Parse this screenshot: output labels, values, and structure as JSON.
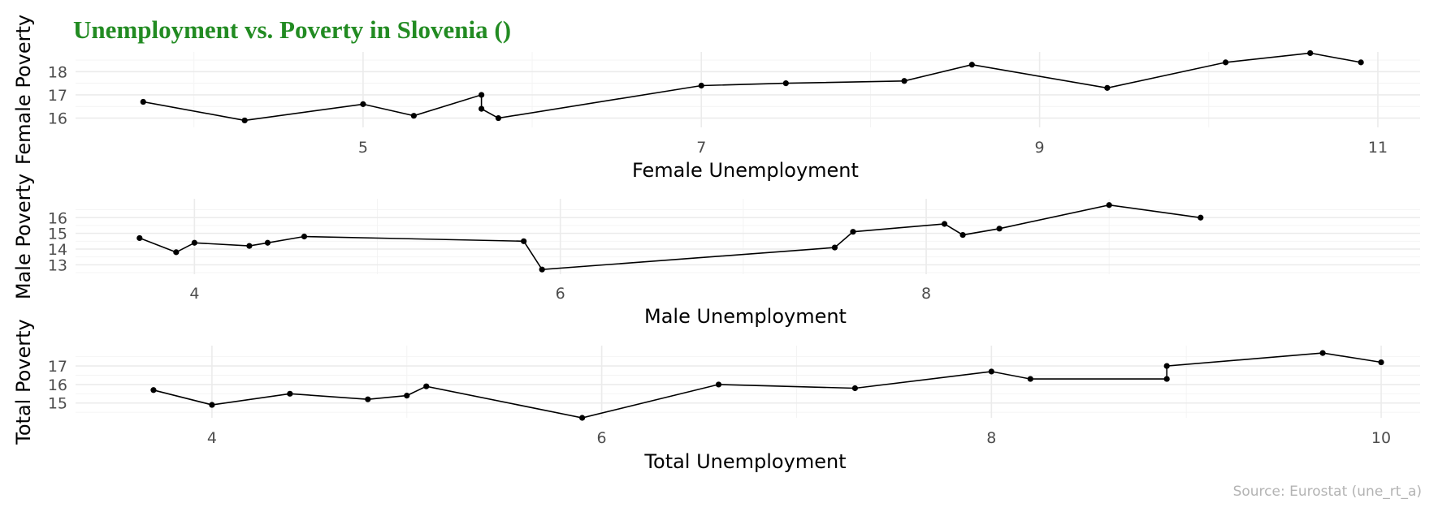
{
  "title": "Unemployment vs. Poverty in Slovenia ()",
  "title_color": "#228B22",
  "caption": "Source: Eurostat (une_rt_a)",
  "chart_data": [
    {
      "type": "line",
      "xlabel": "Female Unemployment",
      "ylabel": "Female Poverty",
      "xlim": [
        3.3,
        11.25
      ],
      "ylim": [
        15.6,
        18.85
      ],
      "xticks": [
        5,
        7,
        9,
        11
      ],
      "yticks": [
        16,
        17,
        18
      ],
      "grid": true,
      "points": [
        [
          3.7,
          16.7
        ],
        [
          4.3,
          15.9
        ],
        [
          5.0,
          16.6
        ],
        [
          5.3,
          16.1
        ],
        [
          5.7,
          17.0
        ],
        [
          5.7,
          16.4
        ],
        [
          5.8,
          16.0
        ],
        [
          7.0,
          17.4
        ],
        [
          7.5,
          17.5
        ],
        [
          8.2,
          17.6
        ],
        [
          8.6,
          18.3
        ],
        [
          9.4,
          17.3
        ],
        [
          10.1,
          18.4
        ],
        [
          10.6,
          18.8
        ],
        [
          10.9,
          18.4
        ]
      ]
    },
    {
      "type": "line",
      "xlabel": "Male Unemployment",
      "ylabel": "Male Poverty",
      "xlim": [
        3.35,
        10.7
      ],
      "ylim": [
        12.4,
        17.2
      ],
      "xticks": [
        4,
        6,
        8
      ],
      "yticks": [
        13,
        14,
        15,
        16
      ],
      "grid": true,
      "points": [
        [
          3.7,
          14.7
        ],
        [
          3.9,
          13.8
        ],
        [
          4.0,
          14.4
        ],
        [
          4.3,
          14.2
        ],
        [
          4.4,
          14.4
        ],
        [
          4.6,
          14.8
        ],
        [
          5.8,
          14.5
        ],
        [
          5.9,
          12.7
        ],
        [
          7.5,
          14.1
        ],
        [
          7.6,
          15.1
        ],
        [
          8.1,
          15.6
        ],
        [
          8.2,
          14.9
        ],
        [
          8.4,
          15.3
        ],
        [
          9.0,
          16.8
        ],
        [
          9.5,
          16.0
        ]
      ]
    },
    {
      "type": "line",
      "xlabel": "Total Unemployment",
      "ylabel": "Total Poverty",
      "xlim": [
        3.3,
        10.2
      ],
      "ylim": [
        14.2,
        18.1
      ],
      "xticks": [
        4,
        6,
        8,
        10
      ],
      "yticks": [
        15,
        16,
        17
      ],
      "grid": true,
      "points": [
        [
          3.7,
          15.7
        ],
        [
          4.0,
          14.9
        ],
        [
          4.4,
          15.5
        ],
        [
          4.8,
          15.2
        ],
        [
          5.0,
          15.4
        ],
        [
          5.1,
          15.9
        ],
        [
          5.9,
          14.2
        ],
        [
          6.6,
          16.0
        ],
        [
          7.3,
          15.8
        ],
        [
          8.0,
          16.7
        ],
        [
          8.2,
          16.3
        ],
        [
          8.9,
          16.3
        ],
        [
          8.9,
          17.0
        ],
        [
          9.7,
          17.7
        ],
        [
          10.0,
          17.2
        ]
      ]
    }
  ]
}
